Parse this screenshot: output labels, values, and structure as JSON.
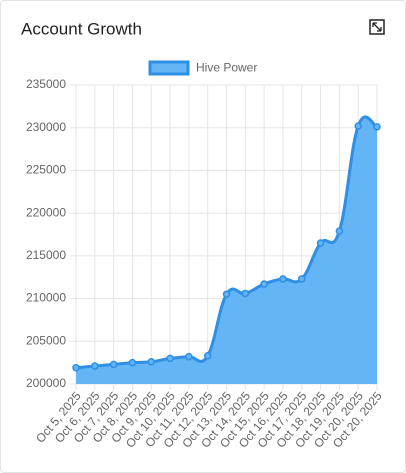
{
  "chart_data": {
    "type": "area",
    "title": "Account Growth",
    "categories": [
      "Oct 5, 2025",
      "Oct 6, 2025",
      "Oct 7, 2025",
      "Oct 8, 2025",
      "Oct 9, 2025",
      "Oct 10, 2025",
      "Oct 11, 2025",
      "Oct 12, 2025",
      "Oct 13, 2025",
      "Oct 14, 2025",
      "Oct 15, 2025",
      "Oct 16, 2025",
      "Oct 17, 2025",
      "Oct 18, 2025",
      "Oct 19, 2025",
      "Oct 20, 2025",
      "Oct 20, 2025"
    ],
    "series": [
      {
        "name": "Hive Power",
        "color": "#2e8fe4",
        "fill": "#64b5f6",
        "values": [
          201900,
          202100,
          202300,
          202500,
          202600,
          203000,
          203200,
          203300,
          210500,
          210600,
          211700,
          212300,
          212300,
          216500,
          217900,
          230200,
          230100
        ]
      }
    ],
    "ylim": [
      200000,
      235000
    ],
    "yticks": [
      200000,
      205000,
      210000,
      215000,
      220000,
      225000,
      230000,
      235000
    ],
    "grid": true,
    "legend": "top"
  }
}
